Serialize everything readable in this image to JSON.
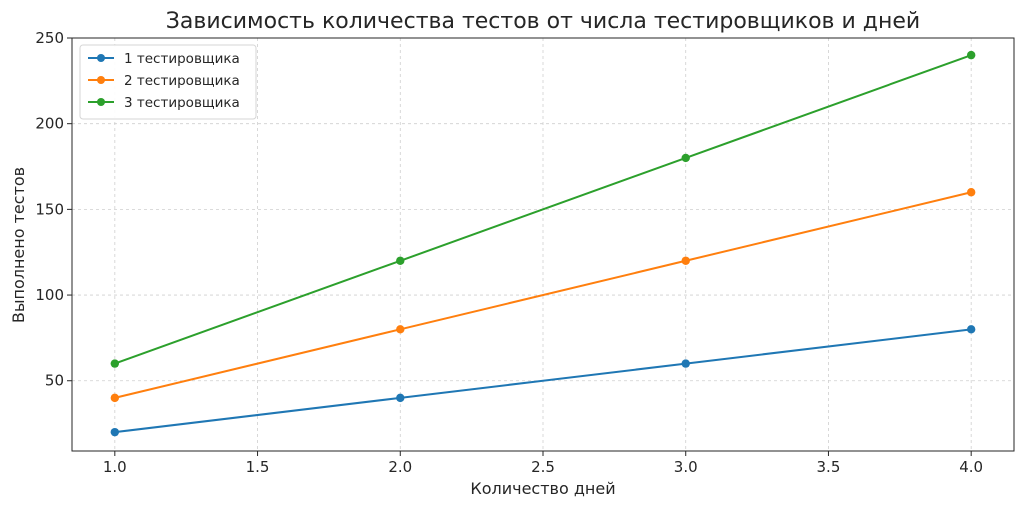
{
  "chart_data": {
    "type": "line",
    "title": "Зависимость количества тестов от числа тестировщиков и дней",
    "xlabel": "Количество дней",
    "ylabel": "Выполнено тестов",
    "x": [
      1,
      2,
      3,
      4
    ],
    "xlim": [
      0.85,
      4.15
    ],
    "ylim": [
      9,
      250
    ],
    "x_ticks": [
      1.0,
      1.5,
      2.0,
      2.5,
      3.0,
      3.5,
      4.0
    ],
    "x_tick_labels": [
      "1.0",
      "1.5",
      "2.0",
      "2.5",
      "3.0",
      "3.5",
      "4.0"
    ],
    "y_ticks": [
      50,
      100,
      150,
      200,
      250
    ],
    "y_tick_labels": [
      "50",
      "100",
      "150",
      "200",
      "250"
    ],
    "grid": true,
    "legend_position": "top-left",
    "series": [
      {
        "name": "1 тестировщика",
        "color": "#1f77b4",
        "values": [
          20,
          40,
          60,
          80
        ]
      },
      {
        "name": "2 тестировщика",
        "color": "#ff7f0e",
        "values": [
          40,
          80,
          120,
          160
        ]
      },
      {
        "name": "3 тестировщика",
        "color": "#2ca02c",
        "values": [
          60,
          120,
          180,
          240
        ]
      }
    ]
  }
}
